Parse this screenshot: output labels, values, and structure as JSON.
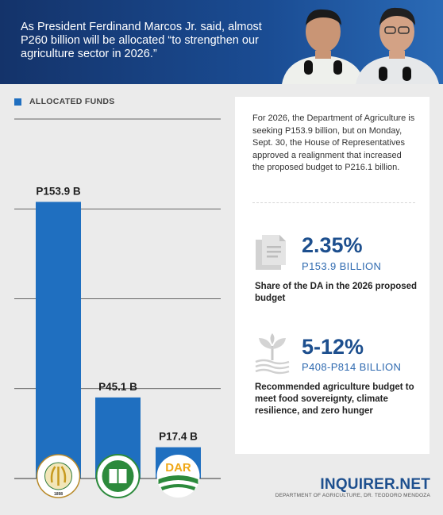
{
  "header": {
    "text": "As President Ferdinand Marcos Jr. said, almost P260 billion will be allocated “to strengthen our agriculture sector in 2026.”"
  },
  "legend": {
    "label": "ALLOCATED FUNDS",
    "color": "#1f6fc0"
  },
  "chart_data": {
    "type": "bar",
    "categories": [
      "Department of Agriculture",
      "NFA",
      "DAR"
    ],
    "values": [
      153.9,
      45.1,
      17.4
    ],
    "data_labels": [
      "P153.9 B",
      "P45.1 B",
      "P17.4 B"
    ],
    "ylim": [
      0,
      200
    ],
    "grid": true,
    "legend": "top-left",
    "series": [
      {
        "name": "ALLOCATED FUNDS",
        "values": [
          153.9,
          45.1,
          17.4
        ]
      }
    ],
    "bar_color": "#1f6fc0"
  },
  "logos": {
    "da": {
      "text": "DEPARTMENT OF AGRICULTURE",
      "year": "1898"
    },
    "dar": {
      "text": "DAR"
    }
  },
  "info": {
    "intro": "For 2026, the Department of Agriculture is seeking P153.9 billion, but on Monday, Sept. 30, the House of Representatives approved a realignment that increased the proposed budget to P216.1 billion.",
    "stats": [
      {
        "icon": "document-icon",
        "value": "2.35%",
        "sub": "P153.9 BILLION",
        "desc": "Share of the DA in the 2026 proposed budget"
      },
      {
        "icon": "sprout-icon",
        "value": "5-12%",
        "sub": "P408-P814 BILLION",
        "desc": "Recommended agriculture budget to meet food sovereignty, climate resilience, and zero hunger"
      }
    ]
  },
  "footer": {
    "brand": "INQUIRER.NET",
    "source": "DEPARTMENT OF AGRICULTURE, DR. TEODORO MENDOZA"
  },
  "colors": {
    "header_bg": "#1a4c93",
    "accent": "#1d4f8e",
    "bar": "#1f6fc0"
  }
}
